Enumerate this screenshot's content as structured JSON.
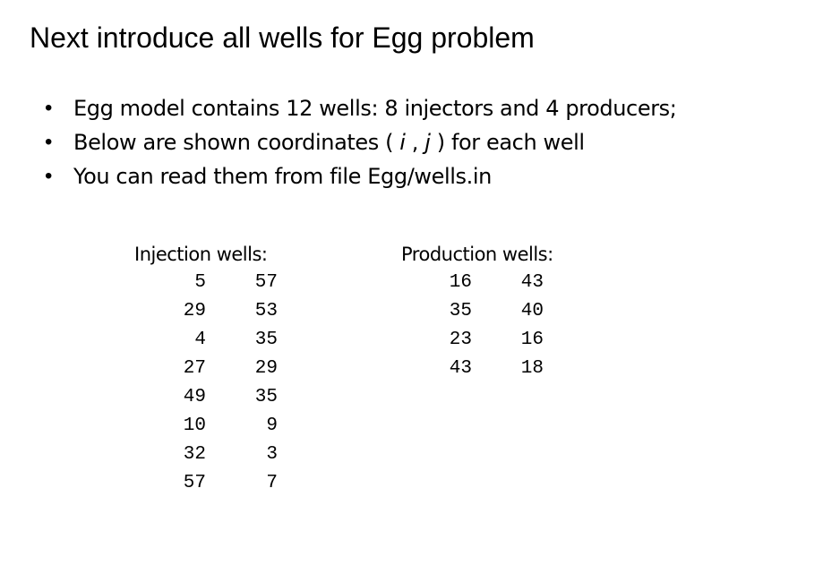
{
  "title": "Next introduce all wells for Egg problem",
  "bullets": {
    "item1": "Egg model contains 12 wells: 8 injectors and 4 producers;",
    "item2": {
      "before": "Below are shown coordinates ( ",
      "i": "i",
      "comma": " , ",
      "j": "j",
      "after": " ) for each well"
    },
    "item3": "You can read them from file Egg/wells.in",
    "marker": "•"
  },
  "injection": {
    "heading": "Injection wells:",
    "rows": [
      [
        "5",
        "57"
      ],
      [
        "29",
        "53"
      ],
      [
        "4",
        "35"
      ],
      [
        "27",
        "29"
      ],
      [
        "49",
        "35"
      ],
      [
        "10",
        "9"
      ],
      [
        "32",
        "3"
      ],
      [
        "57",
        "7"
      ]
    ]
  },
  "production": {
    "heading": "Production wells:",
    "rows": [
      [
        "16",
        "43"
      ],
      [
        "35",
        "40"
      ],
      [
        "23",
        "16"
      ],
      [
        "43",
        "18"
      ]
    ]
  }
}
